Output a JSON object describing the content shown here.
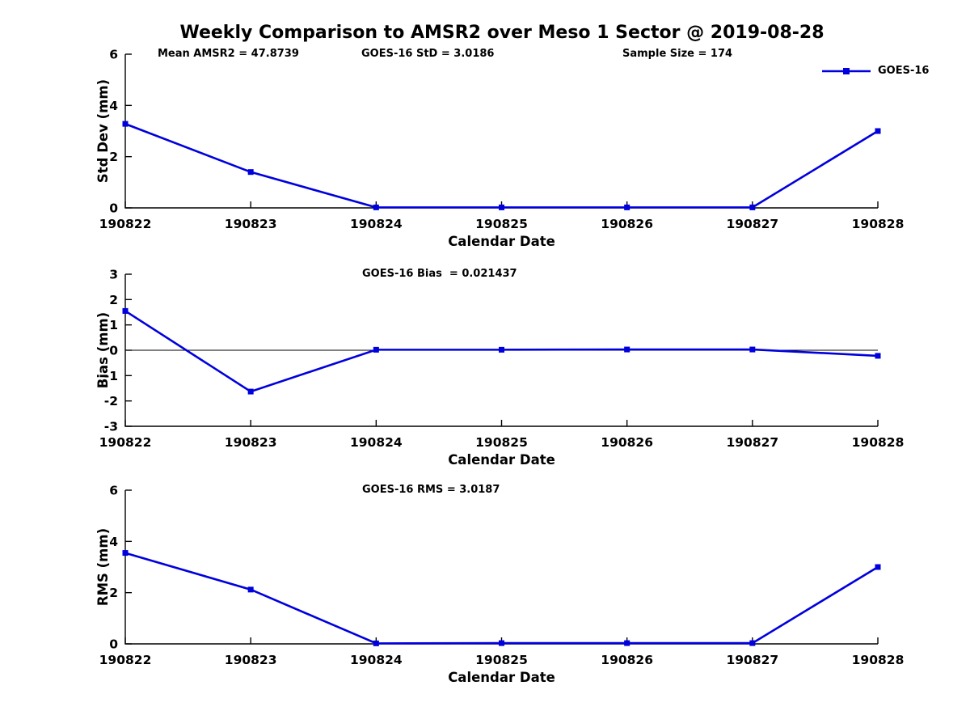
{
  "title": "Weekly Comparison to AMSR2 over Meso 1 Sector @ 2019-08-28",
  "legend": {
    "label": "GOES-16",
    "color": "#0000dd",
    "marker": "square"
  },
  "axis_color": "#000000",
  "chart_data": [
    {
      "name": "std_dev_panel",
      "type": "line",
      "annotations": [
        "Mean AMSR2 = 47.8739",
        "GOES-16 StD = 3.0186",
        "Sample Size = 174"
      ],
      "xlabel": "Calendar Date",
      "ylabel": "Std Dev (mm)",
      "ylim": [
        0,
        6
      ],
      "yticks": [
        0,
        2,
        4,
        6
      ],
      "zero_line": false,
      "categories": [
        "190822",
        "190823",
        "190824",
        "190825",
        "190826",
        "190827",
        "190828"
      ],
      "series": [
        {
          "name": "GOES-16",
          "values": [
            3.28,
            1.4,
            0.02,
            0.02,
            0.02,
            0.02,
            3.0
          ]
        }
      ]
    },
    {
      "name": "bias_panel",
      "type": "line",
      "annotations": [
        "GOES-16 Bias  = 0.021437"
      ],
      "xlabel": "Calendar Date",
      "ylabel": "Bias (mm)",
      "ylim": [
        -3,
        3
      ],
      "yticks": [
        -3,
        -2,
        -1,
        0,
        1,
        2,
        3
      ],
      "zero_line": true,
      "categories": [
        "190822",
        "190823",
        "190824",
        "190825",
        "190826",
        "190827",
        "190828"
      ],
      "series": [
        {
          "name": "GOES-16",
          "values": [
            1.55,
            -1.63,
            0.02,
            0.02,
            0.03,
            0.03,
            -0.22
          ]
        }
      ]
    },
    {
      "name": "rms_panel",
      "type": "line",
      "annotations": [
        "GOES-16 RMS = 3.0187"
      ],
      "xlabel": "Calendar Date",
      "ylabel": "RMS (mm)",
      "ylim": [
        0,
        6
      ],
      "yticks": [
        0,
        2,
        4,
        6
      ],
      "zero_line": false,
      "categories": [
        "190822",
        "190823",
        "190824",
        "190825",
        "190826",
        "190827",
        "190828"
      ],
      "series": [
        {
          "name": "GOES-16",
          "values": [
            3.55,
            2.12,
            0.02,
            0.03,
            0.03,
            0.03,
            3.0
          ]
        }
      ]
    }
  ]
}
